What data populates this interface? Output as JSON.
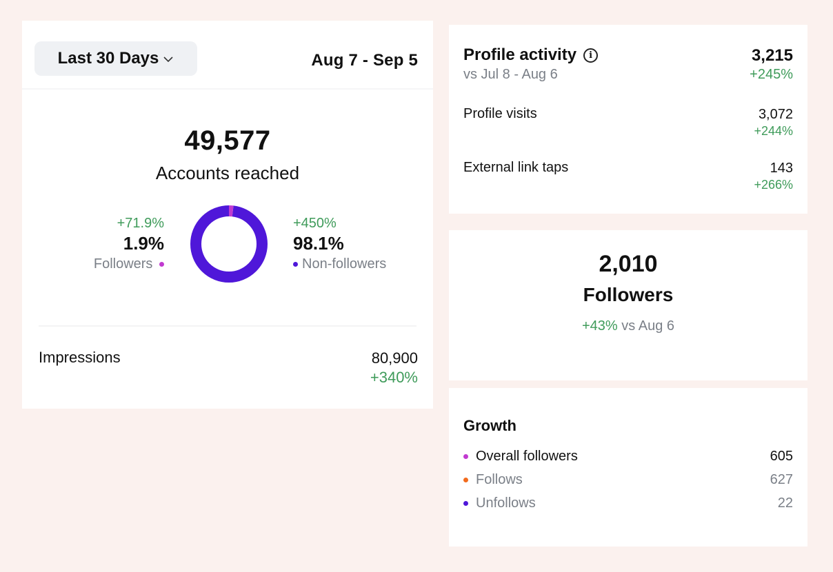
{
  "reach": {
    "range_button": "Last 30 Days",
    "date_range": "Aug 7 - Sep 5",
    "accounts_reached_value": "49,577",
    "accounts_reached_label": "Accounts reached",
    "followers": {
      "change": "+71.9%",
      "percent": "1.9%",
      "label": "Followers",
      "share": 1.9,
      "color": "#c13ad0"
    },
    "non_followers": {
      "change": "+450%",
      "percent": "98.1%",
      "label": "Non-followers",
      "share": 98.1,
      "color": "#4f17d9"
    },
    "impressions": {
      "label": "Impressions",
      "value": "80,900",
      "change": "+340%"
    }
  },
  "profile_activity": {
    "title": "Profile activity",
    "comparison": "vs Jul 8 - Aug 6",
    "total": "3,215",
    "total_change": "+245%",
    "rows": [
      {
        "label": "Profile visits",
        "value": "3,072",
        "change": "+244%"
      },
      {
        "label": "External link taps",
        "value": "143",
        "change": "+266%"
      }
    ]
  },
  "followers_summary": {
    "value": "2,010",
    "label": "Followers",
    "change": "+43%",
    "comparison": "vs Aug 6"
  },
  "growth": {
    "title": "Growth",
    "rows": [
      {
        "label": "Overall followers",
        "value": "605",
        "color": "#c13ad0"
      },
      {
        "label": "Follows",
        "value": "627",
        "color": "#f26b1d"
      },
      {
        "label": "Unfollows",
        "value": "22",
        "color": "#4f17d9"
      }
    ]
  }
}
